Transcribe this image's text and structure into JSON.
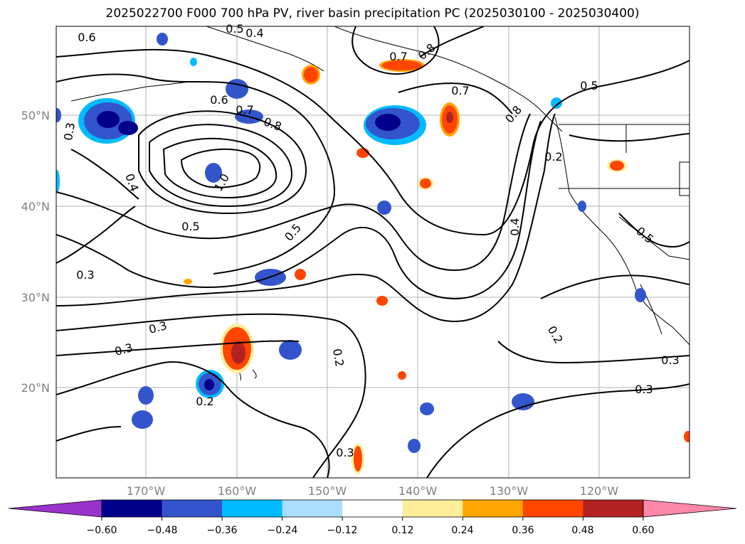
{
  "title": "2025022700 F000 700 hPa PV, river basin precipitation PC (2025030100 - 2025030400)",
  "map": {
    "lat_labels": [
      "50°N",
      "40°N",
      "30°N",
      "20°N"
    ],
    "lon_labels": [
      "170°W",
      "160°W",
      "150°W",
      "140°W",
      "130°W",
      "120°W"
    ],
    "gridlines": true,
    "contour_labels": [
      "0.6",
      "0.5",
      "0.4",
      "0.7",
      "0.8",
      "0.6",
      "0.7",
      "0.8",
      "0.7",
      "0.5",
      "0.8",
      "0.3",
      "0.4",
      "1.0",
      "0.5",
      "0.5",
      "0.2",
      "0.4",
      "0.5",
      "0.3",
      "0.3",
      "0.2",
      "0.3",
      "0.2",
      "0.3",
      "0.3",
      "0.2",
      "0.3"
    ]
  },
  "colorbar": {
    "ticks": [
      "−0.60",
      "−0.48",
      "−0.36",
      "−0.24",
      "−0.12",
      "0.12",
      "0.24",
      "0.36",
      "0.48",
      "0.60"
    ],
    "colors": [
      "#9933cc",
      "#00008b",
      "#3355cc",
      "#00bbff",
      "#aaddff",
      "#ffffff",
      "#ffee99",
      "#ffa500",
      "#ff4500",
      "#b22222",
      "#ff88aa"
    ]
  }
}
